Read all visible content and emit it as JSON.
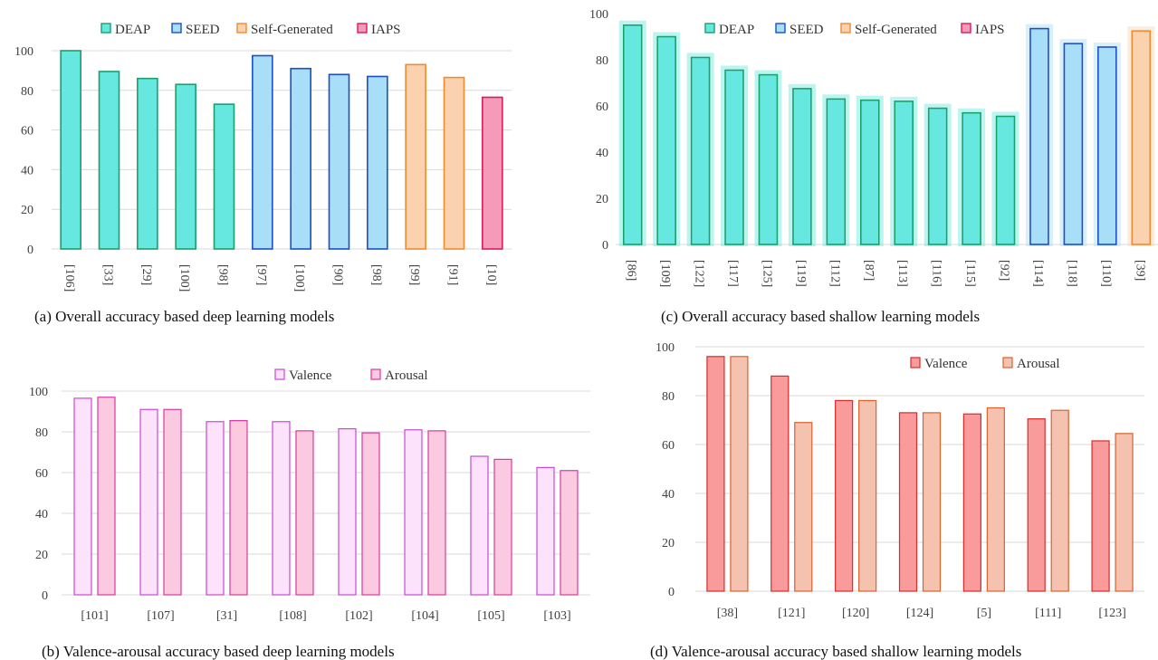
{
  "palette": {
    "DEAP": {
      "fill": "#66e8e0",
      "stroke": "#1aa06a"
    },
    "SEED": {
      "fill": "#a8def8",
      "stroke": "#1a4fc7"
    },
    "Self-Generated": {
      "fill": "#fbd2b0",
      "stroke": "#f08b30"
    },
    "IAPS": {
      "fill": "#f59ab8",
      "stroke": "#d81d57"
    },
    "Valence_b": {
      "fill": "#fde2fb",
      "stroke": "#c84bd6"
    },
    "Arousal_b": {
      "fill": "#fbcae0",
      "stroke": "#d83aa0"
    },
    "Valence_d": {
      "fill": "#f99b9b",
      "stroke": "#d62c2c"
    },
    "Arousal_d": {
      "fill": "#f6c2b0",
      "stroke": "#d9622f"
    }
  },
  "chart_data": [
    {
      "id": "a",
      "type": "bar",
      "title": "",
      "caption": "(a) Overall accuracy based deep learning models",
      "ylim": [
        0,
        100
      ],
      "yticks": [
        0,
        20,
        40,
        60,
        80,
        100
      ],
      "grid": true,
      "legend": [
        "DEAP",
        "SEED",
        "Self-Generated",
        "IAPS"
      ],
      "legend_position": "top",
      "category_label_rotation": "vertical",
      "categories": [
        "[106]",
        "[33]",
        "[29]",
        "[100]",
        "[98]",
        "[97]",
        "[100]",
        "[90]",
        "[98]",
        "[99]",
        "[91]",
        "[10]"
      ],
      "values": [
        100,
        89.5,
        86,
        83,
        73,
        97.5,
        91,
        88,
        87,
        93,
        86.5,
        76.5
      ],
      "groups": [
        "DEAP",
        "DEAP",
        "DEAP",
        "DEAP",
        "DEAP",
        "SEED",
        "SEED",
        "SEED",
        "SEED",
        "Self-Generated",
        "Self-Generated",
        "IAPS"
      ]
    },
    {
      "id": "c",
      "type": "bar",
      "title": "",
      "caption": "(c) Overall accuracy based shallow learning models",
      "ylim": [
        0,
        100
      ],
      "yticks": [
        0,
        20,
        40,
        60,
        80,
        100
      ],
      "grid": false,
      "legend": [
        "DEAP",
        "SEED",
        "Self-Generated",
        "IAPS"
      ],
      "legend_position": "top",
      "category_label_rotation": "vertical",
      "categories": [
        "[86]",
        "[109]",
        "[122]",
        "[117]",
        "[125]",
        "[119]",
        "[112]",
        "[87]",
        "[113]",
        "[116]",
        "[115]",
        "[92]",
        "[114]",
        "[118]",
        "[110]",
        "[39]"
      ],
      "values": [
        95,
        90,
        81,
        75.5,
        73.5,
        67.5,
        63,
        62.5,
        62,
        59,
        57,
        55.5,
        93.5,
        87,
        85.5,
        92.5
      ],
      "groups": [
        "DEAP",
        "DEAP",
        "DEAP",
        "DEAP",
        "DEAP",
        "DEAP",
        "DEAP",
        "DEAP",
        "DEAP",
        "DEAP",
        "DEAP",
        "DEAP",
        "SEED",
        "SEED",
        "SEED",
        "Self-Generated"
      ]
    },
    {
      "id": "b",
      "type": "bar",
      "title": "",
      "caption": "(b) Valence-arousal accuracy based deep learning models",
      "ylim": [
        0,
        100
      ],
      "yticks": [
        0,
        20,
        40,
        60,
        80,
        100
      ],
      "grid": true,
      "legend_position": "top-right",
      "category_label_rotation": "horizontal",
      "categories": [
        "[101]",
        "[107]",
        "[31]",
        "[108]",
        "[102]",
        "[104]",
        "[105]",
        "[103]"
      ],
      "series": [
        {
          "name": "Valence",
          "style": "Valence_b",
          "values": [
            96.5,
            91,
            85,
            85,
            81.5,
            81,
            68,
            62.5
          ]
        },
        {
          "name": "Arousal",
          "style": "Arousal_b",
          "values": [
            97,
            91,
            85.5,
            80.5,
            79.5,
            80.5,
            66.5,
            61
          ]
        }
      ]
    },
    {
      "id": "d",
      "type": "bar",
      "title": "",
      "caption": "(d) Valence-arousal accuracy based shallow learning models",
      "ylim": [
        0,
        100
      ],
      "yticks": [
        0,
        20,
        40,
        60,
        80,
        100
      ],
      "grid": true,
      "legend_position": "top-right",
      "category_label_rotation": "horizontal",
      "categories": [
        "[38]",
        "[121]",
        "[120]",
        "[124]",
        "[5]",
        "[111]",
        "[123]"
      ],
      "series": [
        {
          "name": "Valence",
          "style": "Valence_d",
          "values": [
            96,
            88,
            78,
            73,
            72.5,
            70.5,
            61.5
          ]
        },
        {
          "name": "Arousal",
          "style": "Arousal_d",
          "values": [
            96,
            69,
            78,
            73,
            75,
            74,
            64.5
          ]
        }
      ]
    }
  ]
}
